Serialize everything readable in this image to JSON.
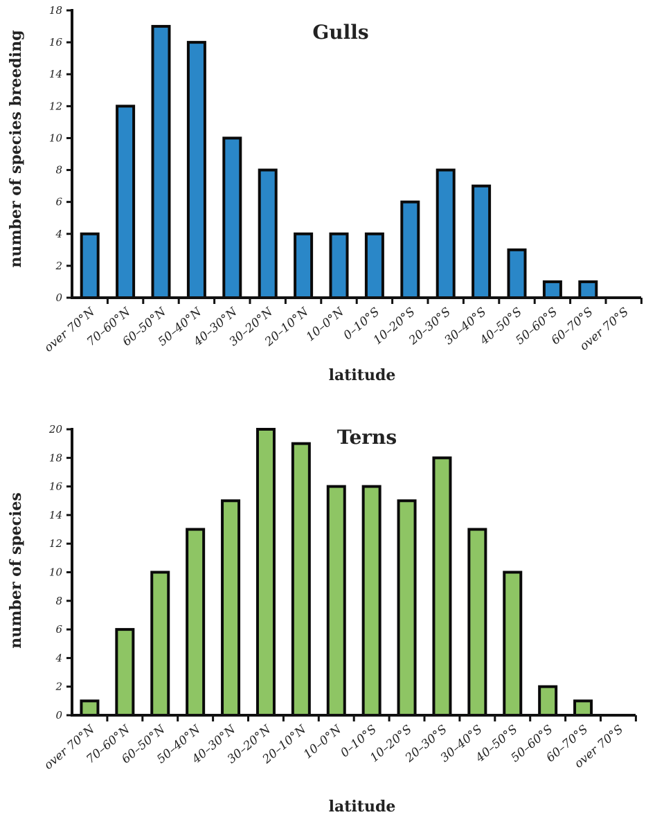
{
  "chart_data": [
    {
      "type": "bar",
      "title": "Gulls",
      "xlabel": "latitude",
      "ylabel": "number of species breeding",
      "categories": [
        "over 70°N",
        "70–60°N",
        "60–50°N",
        "50–40°N",
        "40–30°N",
        "30–20°N",
        "20–10°N",
        "10–0°N",
        "0–10°S",
        "10–20°S",
        "20–30°S",
        "30–40°S",
        "40–50°S",
        "50–60°S",
        "60–70°S",
        "over 70°S"
      ],
      "values": [
        4,
        12,
        17,
        16,
        10,
        8,
        4,
        4,
        4,
        6,
        8,
        7,
        3,
        1,
        1,
        0
      ],
      "ylim": [
        0,
        18
      ],
      "yticks": [
        0,
        2,
        4,
        6,
        8,
        10,
        12,
        14,
        16,
        18
      ],
      "bar_color": "#2a87c8",
      "grid": false,
      "legend": "none"
    },
    {
      "type": "bar",
      "title": "Terns",
      "xlabel": "latitude",
      "ylabel": "number of species",
      "categories": [
        "over 70°N",
        "70–60°N",
        "60–50°N",
        "50–40°N",
        "40–30°N",
        "30–20°N",
        "20–10°N",
        "10–0°N",
        "0–10°S",
        "10–20°S",
        "20–30°S",
        "30–40°S",
        "40–50°S",
        "50–60°S",
        "60–70°S",
        "over 70°S"
      ],
      "values": [
        1,
        6,
        10,
        13,
        15,
        20,
        19,
        16,
        16,
        15,
        18,
        13,
        10,
        2,
        1,
        0
      ],
      "ylim": [
        0,
        20
      ],
      "yticks": [
        0,
        2,
        4,
        6,
        8,
        10,
        12,
        14,
        16,
        18,
        20
      ],
      "bar_color": "#8ec564",
      "grid": false,
      "legend": "none"
    }
  ]
}
